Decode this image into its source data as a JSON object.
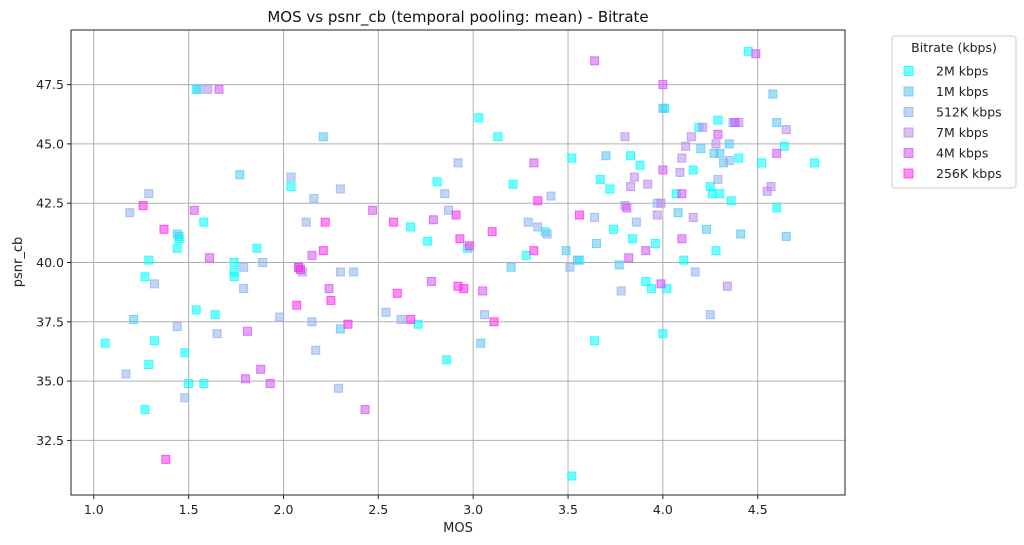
{
  "chart_data": {
    "type": "scatter",
    "title": "MOS vs psnr_cb (temporal pooling: mean) - Bitrate",
    "xlabel": "MOS",
    "ylabel": "psnr_cb",
    "xlim": [
      0.88,
      4.96
    ],
    "ylim": [
      30.2,
      49.8
    ],
    "xticks": [
      "1.0",
      "1.5",
      "2.0",
      "2.5",
      "3.0",
      "3.5",
      "4.0",
      "4.5"
    ],
    "xtick_values": [
      1.0,
      1.5,
      2.0,
      2.5,
      3.0,
      3.5,
      4.0,
      4.5
    ],
    "yticks": [
      "32.5",
      "35.0",
      "37.5",
      "40.0",
      "42.5",
      "45.0",
      "47.5"
    ],
    "ytick_values": [
      32.5,
      35.0,
      37.5,
      40.0,
      42.5,
      45.0,
      47.5
    ],
    "grid": true,
    "legend": {
      "title": "Bitrate (kbps)",
      "placement": "outside-top-right"
    },
    "marker": "square",
    "series": [
      {
        "name": "2M kbps",
        "color": "#00FFFF",
        "points": [
          [
            1.06,
            36.6
          ],
          [
            1.27,
            33.8
          ],
          [
            1.27,
            39.4
          ],
          [
            1.29,
            40.1
          ],
          [
            1.29,
            35.7
          ],
          [
            1.32,
            36.7
          ],
          [
            1.44,
            40.6
          ],
          [
            1.45,
            41.0
          ],
          [
            1.45,
            41.1
          ],
          [
            1.48,
            36.2
          ],
          [
            1.5,
            34.9
          ],
          [
            1.54,
            47.3
          ],
          [
            1.54,
            38.0
          ],
          [
            1.58,
            34.9
          ],
          [
            1.58,
            41.7
          ],
          [
            1.64,
            37.8
          ],
          [
            1.74,
            39.6
          ],
          [
            1.74,
            40.0
          ],
          [
            1.74,
            39.4
          ],
          [
            1.86,
            40.6
          ],
          [
            2.04,
            43.2
          ],
          [
            2.67,
            41.5
          ],
          [
            2.71,
            37.4
          ],
          [
            2.76,
            40.9
          ],
          [
            2.81,
            43.4
          ],
          [
            2.86,
            35.9
          ],
          [
            2.97,
            40.6
          ],
          [
            3.03,
            46.1
          ],
          [
            3.13,
            45.3
          ],
          [
            3.21,
            43.3
          ],
          [
            3.28,
            40.3
          ],
          [
            3.38,
            41.3
          ],
          [
            3.52,
            44.4
          ],
          [
            3.52,
            31.0
          ],
          [
            3.56,
            40.1
          ],
          [
            3.64,
            36.7
          ],
          [
            3.67,
            43.5
          ],
          [
            3.72,
            43.1
          ],
          [
            3.74,
            41.4
          ],
          [
            3.83,
            44.5
          ],
          [
            3.84,
            41.0
          ],
          [
            3.88,
            44.1
          ],
          [
            3.91,
            39.2
          ],
          [
            3.94,
            38.9
          ],
          [
            3.96,
            40.8
          ],
          [
            4.0,
            37.0
          ],
          [
            4.01,
            46.5
          ],
          [
            4.02,
            38.9
          ],
          [
            4.07,
            42.9
          ],
          [
            4.11,
            40.1
          ],
          [
            4.16,
            43.9
          ],
          [
            4.19,
            45.7
          ],
          [
            4.25,
            43.2
          ],
          [
            4.26,
            42.9
          ],
          [
            4.28,
            40.5
          ],
          [
            4.29,
            46.0
          ],
          [
            4.3,
            42.9
          ],
          [
            4.36,
            42.6
          ],
          [
            4.4,
            44.4
          ],
          [
            4.45,
            48.9
          ],
          [
            4.52,
            44.2
          ],
          [
            4.6,
            42.3
          ],
          [
            4.64,
            44.9
          ],
          [
            4.8,
            44.2
          ]
        ]
      },
      {
        "name": "1M kbps",
        "color": "#55C7F4",
        "points": [
          [
            1.21,
            37.6
          ],
          [
            1.44,
            41.2
          ],
          [
            1.55,
            47.3
          ],
          [
            1.77,
            43.7
          ],
          [
            2.08,
            39.8
          ],
          [
            2.21,
            45.3
          ],
          [
            2.3,
            37.2
          ],
          [
            3.04,
            36.6
          ],
          [
            3.2,
            39.8
          ],
          [
            3.49,
            40.5
          ],
          [
            3.55,
            40.1
          ],
          [
            3.65,
            40.8
          ],
          [
            3.7,
            44.5
          ],
          [
            3.77,
            39.9
          ],
          [
            4.0,
            46.5
          ],
          [
            4.08,
            42.1
          ],
          [
            4.2,
            44.8
          ],
          [
            4.23,
            41.4
          ],
          [
            4.27,
            44.6
          ],
          [
            4.3,
            44.6
          ],
          [
            4.32,
            44.2
          ],
          [
            4.35,
            45.0
          ],
          [
            4.37,
            45.9
          ],
          [
            4.41,
            41.2
          ],
          [
            4.58,
            47.1
          ],
          [
            4.6,
            45.9
          ],
          [
            4.65,
            41.1
          ]
        ]
      },
      {
        "name": "512K kbps",
        "color": "#8EB3EF",
        "points": [
          [
            1.17,
            35.3
          ],
          [
            1.19,
            42.1
          ],
          [
            1.29,
            42.9
          ],
          [
            1.32,
            39.1
          ],
          [
            1.44,
            37.3
          ],
          [
            1.48,
            34.3
          ],
          [
            1.65,
            37.0
          ],
          [
            1.79,
            39.8
          ],
          [
            1.79,
            38.9
          ],
          [
            1.89,
            40.0
          ],
          [
            1.98,
            37.7
          ],
          [
            2.04,
            43.6
          ],
          [
            2.1,
            39.6
          ],
          [
            2.12,
            41.7
          ],
          [
            2.15,
            37.5
          ],
          [
            2.16,
            42.7
          ],
          [
            2.17,
            36.3
          ],
          [
            2.29,
            34.7
          ],
          [
            2.3,
            39.6
          ],
          [
            2.3,
            43.1
          ],
          [
            2.37,
            39.6
          ],
          [
            2.54,
            37.9
          ],
          [
            2.62,
            37.6
          ],
          [
            2.85,
            42.9
          ],
          [
            2.87,
            42.2
          ],
          [
            2.92,
            44.2
          ],
          [
            3.06,
            37.8
          ],
          [
            3.29,
            41.7
          ],
          [
            3.34,
            41.5
          ],
          [
            3.39,
            41.2
          ],
          [
            3.41,
            42.8
          ],
          [
            3.51,
            39.8
          ],
          [
            3.64,
            41.9
          ],
          [
            3.78,
            38.8
          ],
          [
            3.86,
            41.7
          ],
          [
            3.97,
            42.5
          ],
          [
            4.25,
            37.8
          ],
          [
            4.17,
            39.6
          ],
          [
            4.29,
            43.5
          ],
          [
            4.35,
            44.3
          ]
        ]
      },
      {
        "name": "7M kbps",
        "color": "#B98BEE",
        "points": [
          [
            1.6,
            47.3
          ],
          [
            3.8,
            45.3
          ],
          [
            3.8,
            42.4
          ],
          [
            3.83,
            43.2
          ],
          [
            3.85,
            43.6
          ],
          [
            3.92,
            43.3
          ],
          [
            3.97,
            42.0
          ],
          [
            3.99,
            42.5
          ],
          [
            4.09,
            43.8
          ],
          [
            4.1,
            44.4
          ],
          [
            4.12,
            44.9
          ],
          [
            4.15,
            45.3
          ],
          [
            4.16,
            41.9
          ],
          [
            4.21,
            45.7
          ],
          [
            4.28,
            45.0
          ],
          [
            4.34,
            39.0
          ],
          [
            4.4,
            45.9
          ],
          [
            4.55,
            43.0
          ],
          [
            4.57,
            43.2
          ],
          [
            4.65,
            45.6
          ]
        ]
      },
      {
        "name": "4M kbps",
        "color": "#D255F6",
        "points": [
          [
            1.53,
            42.2
          ],
          [
            1.61,
            40.2
          ],
          [
            1.66,
            47.3
          ],
          [
            1.8,
            35.1
          ],
          [
            1.81,
            37.1
          ],
          [
            1.88,
            35.5
          ],
          [
            1.93,
            34.9
          ],
          [
            2.15,
            40.3
          ],
          [
            2.24,
            38.9
          ],
          [
            2.43,
            33.8
          ],
          [
            2.47,
            42.2
          ],
          [
            2.78,
            39.2
          ],
          [
            2.79,
            41.8
          ],
          [
            3.05,
            38.8
          ],
          [
            3.32,
            44.2
          ],
          [
            3.64,
            48.5
          ],
          [
            3.82,
            40.2
          ],
          [
            4.0,
            47.5
          ],
          [
            4.0,
            43.9
          ],
          [
            4.1,
            41.0
          ],
          [
            4.1,
            42.9
          ],
          [
            4.29,
            45.4
          ],
          [
            4.38,
            45.9
          ],
          [
            4.49,
            48.8
          ],
          [
            4.6,
            44.6
          ],
          [
            3.81,
            42.3
          ],
          [
            3.91,
            40.5
          ],
          [
            3.99,
            39.1
          ]
        ]
      },
      {
        "name": "256K kbps",
        "color": "#FF2BEE",
        "points": [
          [
            1.26,
            42.4
          ],
          [
            1.37,
            41.4
          ],
          [
            1.38,
            31.7
          ],
          [
            2.07,
            38.2
          ],
          [
            2.08,
            39.8
          ],
          [
            2.09,
            39.7
          ],
          [
            2.21,
            40.5
          ],
          [
            2.22,
            41.7
          ],
          [
            2.25,
            38.4
          ],
          [
            2.34,
            37.4
          ],
          [
            2.58,
            41.7
          ],
          [
            2.6,
            38.7
          ],
          [
            2.67,
            37.6
          ],
          [
            2.91,
            42.0
          ],
          [
            2.92,
            39.0
          ],
          [
            2.93,
            41.0
          ],
          [
            2.95,
            38.9
          ],
          [
            2.98,
            40.7
          ],
          [
            3.1,
            41.3
          ],
          [
            3.11,
            37.5
          ],
          [
            3.32,
            40.5
          ],
          [
            3.34,
            42.6
          ],
          [
            3.56,
            42.0
          ]
        ]
      }
    ]
  }
}
